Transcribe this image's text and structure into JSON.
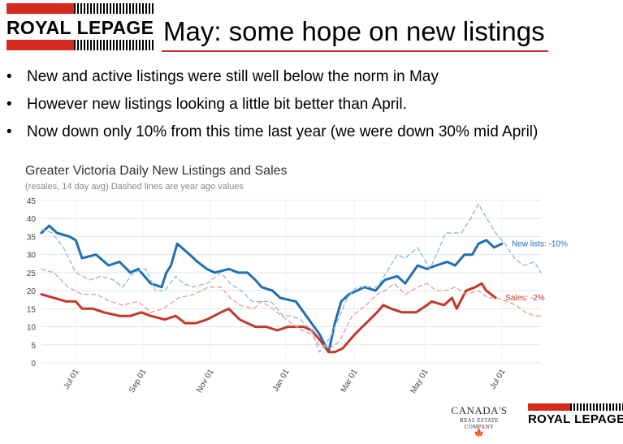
{
  "brand": {
    "name_royal": "ROYAL",
    "name_lepage": "LEPAGE",
    "canadas": "CANADA'S",
    "real_estate_company": "REAL ESTATE COMPANY"
  },
  "slide": {
    "title": "May: some hope on new listings",
    "bullets": [
      "New and active listings were still well below the norm in May",
      "However new listings looking a little bit better than April.",
      "Now down only 10% from this time last year (we were down 30% mid April)"
    ]
  },
  "colors": {
    "new_lists": "#1f6fb5",
    "new_lists_prev": "#8fbbe0",
    "sales": "#c0392b",
    "sales_prev": "#e3a59a",
    "brand_red": "#d52b1e"
  },
  "chart_data": {
    "type": "line",
    "title": "Greater Victoria Daily New Listings and Sales",
    "subtitle": "(resales, 14 day avg)  Dashed lines are year ago values",
    "x_tick_labels": [
      "Jul 01",
      "Sep 01",
      "Nov 01",
      "Jan 01",
      "Mar 01",
      "May 01",
      "Jul 01"
    ],
    "ylim": [
      0,
      45
    ],
    "y_ticks": [
      0,
      5,
      10,
      15,
      20,
      25,
      30,
      35,
      40,
      45
    ],
    "grid": true,
    "x_units": "days since start of chart (x axis begins early June)",
    "series": [
      {
        "name": "New lists",
        "label": "New lists: -10%",
        "style": "solid",
        "color": "#1f6fb5",
        "points": [
          [
            0,
            36
          ],
          [
            5,
            38
          ],
          [
            10,
            36
          ],
          [
            18,
            35
          ],
          [
            22,
            34
          ],
          [
            26,
            29
          ],
          [
            35,
            30
          ],
          [
            43,
            27
          ],
          [
            50,
            28
          ],
          [
            57,
            25
          ],
          [
            62,
            26
          ],
          [
            70,
            22
          ],
          [
            77,
            21
          ],
          [
            80,
            25
          ],
          [
            83,
            27
          ],
          [
            87,
            33
          ],
          [
            95,
            30
          ],
          [
            100,
            28
          ],
          [
            106,
            26
          ],
          [
            111,
            25
          ],
          [
            120,
            26
          ],
          [
            126,
            25
          ],
          [
            132,
            25
          ],
          [
            137,
            23
          ],
          [
            141,
            21
          ],
          [
            148,
            20
          ],
          [
            153,
            18
          ],
          [
            163,
            17
          ],
          [
            168,
            14
          ],
          [
            173,
            11
          ],
          [
            178,
            8
          ],
          [
            184,
            3
          ],
          [
            188,
            11
          ],
          [
            192,
            17
          ],
          [
            197,
            19
          ],
          [
            207,
            21
          ],
          [
            214,
            20
          ],
          [
            220,
            23
          ],
          [
            228,
            24
          ],
          [
            233,
            22
          ],
          [
            241,
            27
          ],
          [
            247,
            26
          ],
          [
            253,
            27
          ],
          [
            260,
            28
          ],
          [
            265,
            27
          ],
          [
            271,
            30
          ],
          [
            276,
            30
          ],
          [
            280,
            33
          ],
          [
            285,
            34
          ],
          [
            290,
            32
          ],
          [
            295,
            33
          ]
        ]
      },
      {
        "name": "Sales",
        "label": "Sales: -2%",
        "style": "solid",
        "color": "#c0392b",
        "points": [
          [
            0,
            19
          ],
          [
            8,
            18
          ],
          [
            16,
            17
          ],
          [
            22,
            17
          ],
          [
            26,
            15
          ],
          [
            33,
            15
          ],
          [
            40,
            14
          ],
          [
            50,
            13
          ],
          [
            57,
            13
          ],
          [
            64,
            14
          ],
          [
            70,
            13
          ],
          [
            79,
            12
          ],
          [
            86,
            13
          ],
          [
            92,
            11
          ],
          [
            99,
            11
          ],
          [
            106,
            12
          ],
          [
            115,
            14
          ],
          [
            120,
            15
          ],
          [
            127,
            12
          ],
          [
            137,
            10
          ],
          [
            144,
            10
          ],
          [
            151,
            9
          ],
          [
            158,
            10
          ],
          [
            168,
            10
          ],
          [
            173,
            9
          ],
          [
            179,
            6
          ],
          [
            184,
            3
          ],
          [
            188,
            3
          ],
          [
            193,
            4
          ],
          [
            201,
            8
          ],
          [
            208,
            11
          ],
          [
            215,
            14
          ],
          [
            219,
            16
          ],
          [
            224,
            15
          ],
          [
            231,
            14
          ],
          [
            240,
            14
          ],
          [
            247,
            16
          ],
          [
            250,
            17
          ],
          [
            258,
            16
          ],
          [
            263,
            18
          ],
          [
            266,
            15
          ],
          [
            272,
            20
          ],
          [
            278,
            21
          ],
          [
            282,
            22
          ],
          [
            285,
            20
          ],
          [
            291,
            18
          ]
        ]
      },
      {
        "name": "New lists (year ago)",
        "style": "dashed",
        "color": "#8fbbe0",
        "points": [
          [
            0,
            37
          ],
          [
            7,
            36
          ],
          [
            14,
            32
          ],
          [
            22,
            25
          ],
          [
            31,
            23
          ],
          [
            38,
            24
          ],
          [
            46,
            23
          ],
          [
            52,
            21
          ],
          [
            59,
            25
          ],
          [
            67,
            26
          ],
          [
            73,
            20
          ],
          [
            79,
            20
          ],
          [
            86,
            24
          ],
          [
            91,
            22
          ],
          [
            97,
            21
          ],
          [
            106,
            22
          ],
          [
            115,
            25
          ],
          [
            121,
            22
          ],
          [
            128,
            20
          ],
          [
            135,
            17
          ],
          [
            141,
            17
          ],
          [
            147,
            17
          ],
          [
            155,
            13
          ],
          [
            160,
            13
          ],
          [
            166,
            12
          ],
          [
            173,
            9
          ],
          [
            178,
            3
          ],
          [
            185,
            7
          ],
          [
            190,
            12
          ],
          [
            196,
            18
          ],
          [
            202,
            21
          ],
          [
            210,
            21
          ],
          [
            215,
            21
          ],
          [
            221,
            25
          ],
          [
            228,
            30
          ],
          [
            233,
            29
          ],
          [
            241,
            32
          ],
          [
            249,
            26
          ],
          [
            259,
            36
          ],
          [
            269,
            36
          ],
          [
            275,
            40
          ],
          [
            280,
            44
          ],
          [
            284,
            41
          ],
          [
            291,
            36
          ],
          [
            297,
            33
          ],
          [
            303,
            29
          ],
          [
            309,
            27
          ],
          [
            316,
            28
          ],
          [
            320,
            25
          ]
        ]
      },
      {
        "name": "Sales (year ago)",
        "style": "dashed",
        "color": "#e3a59a",
        "points": [
          [
            0,
            26
          ],
          [
            8,
            25
          ],
          [
            17,
            21
          ],
          [
            26,
            19
          ],
          [
            35,
            19
          ],
          [
            44,
            17
          ],
          [
            52,
            16
          ],
          [
            62,
            17
          ],
          [
            70,
            14
          ],
          [
            78,
            15
          ],
          [
            88,
            18
          ],
          [
            98,
            19
          ],
          [
            107,
            21
          ],
          [
            115,
            21
          ],
          [
            121,
            18
          ],
          [
            127,
            16
          ],
          [
            136,
            15
          ],
          [
            141,
            17
          ],
          [
            148,
            15
          ],
          [
            154,
            13
          ],
          [
            160,
            11
          ],
          [
            167,
            9
          ],
          [
            173,
            8
          ],
          [
            178,
            5
          ],
          [
            185,
            4
          ],
          [
            191,
            6
          ],
          [
            199,
            13
          ],
          [
            208,
            16
          ],
          [
            215,
            19
          ],
          [
            220,
            20
          ],
          [
            226,
            22
          ],
          [
            233,
            19
          ],
          [
            241,
            21
          ],
          [
            247,
            22
          ],
          [
            253,
            20
          ],
          [
            259,
            20
          ],
          [
            265,
            21
          ],
          [
            272,
            19
          ],
          [
            280,
            20
          ],
          [
            286,
            18
          ],
          [
            292,
            18
          ],
          [
            298,
            17
          ],
          [
            304,
            16
          ],
          [
            310,
            14
          ],
          [
            316,
            13
          ],
          [
            320,
            13
          ]
        ]
      }
    ]
  }
}
